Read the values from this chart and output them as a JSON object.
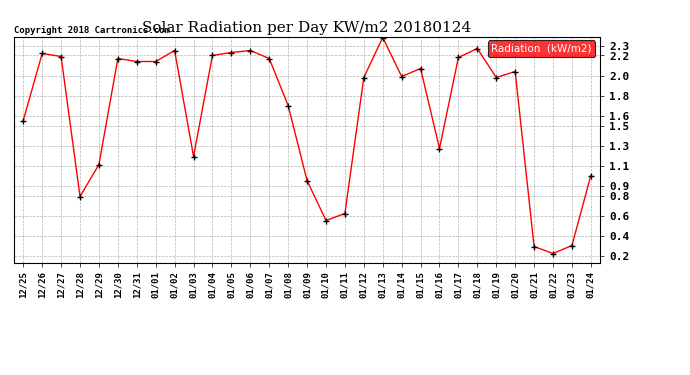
{
  "title": "Solar Radiation per Day KW/m2 20180124",
  "copyright": "Copyright 2018 Cartronics.com",
  "legend_label": "Radiation  (kW/m2)",
  "line_color": "red",
  "marker_color": "black",
  "background_color": "#ffffff",
  "legend_bg": "red",
  "legend_text_color": "white",
  "ylim": [
    0.13,
    2.38
  ],
  "yticks": [
    0.2,
    0.4,
    0.6,
    0.8,
    0.9,
    1.1,
    1.3,
    1.5,
    1.6,
    1.8,
    2.0,
    2.2,
    2.3
  ],
  "ytick_labels": [
    "0.2",
    "0.4",
    "0.6",
    "0.8",
    "0.9",
    "1.1",
    "1.3",
    "1.5",
    "1.6",
    "1.8",
    "2.0",
    "2.2",
    "2.3"
  ],
  "dates": [
    "12/25",
    "12/26",
    "12/27",
    "12/28",
    "12/29",
    "12/30",
    "12/31",
    "01/01",
    "01/02",
    "01/03",
    "01/04",
    "01/05",
    "01/06",
    "01/07",
    "01/08",
    "01/09",
    "01/10",
    "01/11",
    "01/12",
    "01/13",
    "01/14",
    "01/15",
    "01/16",
    "01/17",
    "01/18",
    "01/19",
    "01/20",
    "01/21",
    "01/22",
    "01/23",
    "01/24"
  ],
  "values": [
    1.55,
    2.22,
    2.19,
    0.79,
    1.11,
    2.17,
    2.14,
    2.14,
    2.25,
    1.19,
    2.2,
    2.23,
    2.25,
    2.17,
    1.7,
    0.95,
    0.55,
    0.62,
    1.98,
    2.38,
    1.99,
    2.07,
    1.27,
    2.18,
    2.27,
    1.98,
    2.04,
    0.29,
    0.22,
    0.3,
    1.0
  ]
}
